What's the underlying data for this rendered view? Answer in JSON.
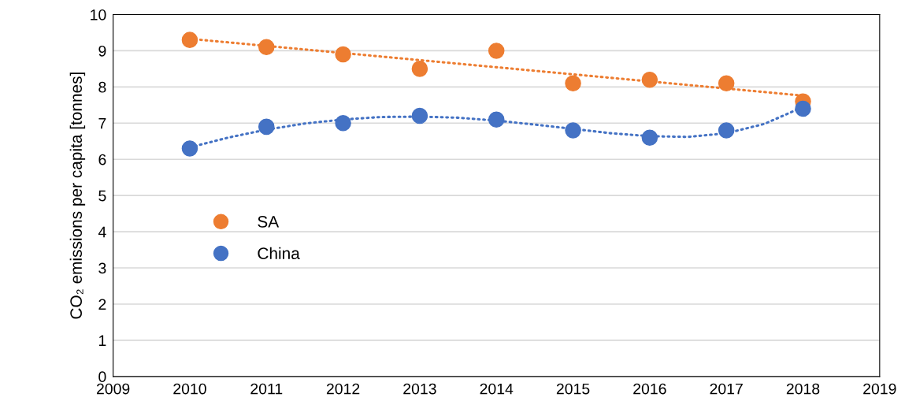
{
  "chart_data": {
    "type": "scatter",
    "ylabel": "CO₂ emissions per capita [tonnes]",
    "xlim": [
      2009,
      2019
    ],
    "xticks": [
      2009,
      2010,
      2011,
      2012,
      2013,
      2014,
      2015,
      2016,
      2017,
      2018,
      2019
    ],
    "ylim": [
      0,
      10
    ],
    "yticks": [
      0,
      1,
      2,
      3,
      4,
      5,
      6,
      7,
      8,
      9,
      10
    ],
    "grid": "y",
    "legend": "left",
    "series": [
      {
        "type": "line",
        "color": "#ed7d31",
        "line_style": "dotted",
        "marker": "none",
        "x": [
          2010,
          2018
        ],
        "values": [
          9.33,
          7.76
        ]
      },
      {
        "type": "line",
        "color": "#4472c4",
        "line_style": "dotted",
        "marker": "none",
        "x": [
          2010,
          2010.5,
          2011,
          2011.5,
          2012,
          2012.5,
          2013,
          2013.5,
          2014,
          2014.5,
          2015,
          2015.5,
          2016,
          2016.5,
          2017,
          2017.5,
          2018
        ],
        "values": [
          6.33,
          6.6,
          6.82,
          6.99,
          7.1,
          7.17,
          7.18,
          7.15,
          7.07,
          6.96,
          6.84,
          6.72,
          6.64,
          6.62,
          6.72,
          6.98,
          7.45
        ]
      },
      {
        "name": "SA",
        "color": "#ed7d31",
        "marker": "circle",
        "x": [
          2010,
          2011,
          2012,
          2013,
          2014,
          2015,
          2016,
          2017,
          2018
        ],
        "values": [
          9.3,
          9.1,
          8.9,
          8.5,
          9.0,
          8.1,
          8.2,
          8.1,
          7.6
        ]
      },
      {
        "name": "China",
        "color": "#4472c4",
        "marker": "circle",
        "x": [
          2010,
          2011,
          2012,
          2013,
          2014,
          2015,
          2016,
          2017,
          2018
        ],
        "values": [
          6.3,
          6.9,
          7.0,
          7.2,
          7.1,
          6.8,
          6.6,
          6.8,
          7.4
        ]
      }
    ]
  }
}
